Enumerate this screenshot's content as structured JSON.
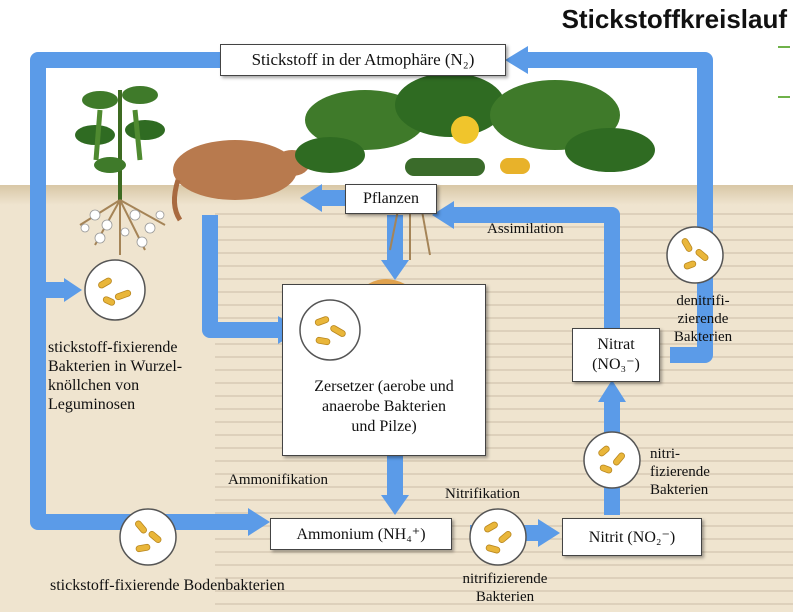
{
  "title": "Stickstoffkreislauf",
  "boxes": {
    "atmosphere": "Stickstoff in der Atmophäre (N₂)",
    "plants": "Pflanzen",
    "decomposers_line1": "Zersetzer (aerobe und",
    "decomposers_line2": "anaerobe Bakterien",
    "decomposers_line3": "und Pilze)",
    "ammonium": "Ammonium (NH₄⁺)",
    "nitrite": "Nitrit (NO₂⁻)",
    "nitrate_line1": "Nitrat",
    "nitrate_line2": "(NO₃⁻)"
  },
  "labels": {
    "assimilation": "Assimilation",
    "ammonification": "Ammonifikation",
    "nitrification": "Nitrifikation",
    "denitrifying_line1": "denitrifi-",
    "denitrifying_line2": "zierende",
    "denitrifying_line3": "Bakterien",
    "nitrifying_right_line1": "nitri-",
    "nitrifying_right_line2": "fizierende",
    "nitrifying_right_line3": "Bakterien",
    "nitrifying_bottom_line1": "nitrifizierende",
    "nitrifying_bottom_line2": "Bakterien",
    "nodule_line1": "stickstoff-fixierende",
    "nodule_line2": "Bakterien in Wurzel-",
    "nodule_line3": "knöllchen von",
    "nodule_line4": "Leguminosen",
    "soil_bacteria": "stickstoff-fixierende Bodenbakterien"
  },
  "colors": {
    "arrow": "#5b9be8",
    "bacteria": "#e9b63a",
    "soil": "#efe4cf"
  }
}
